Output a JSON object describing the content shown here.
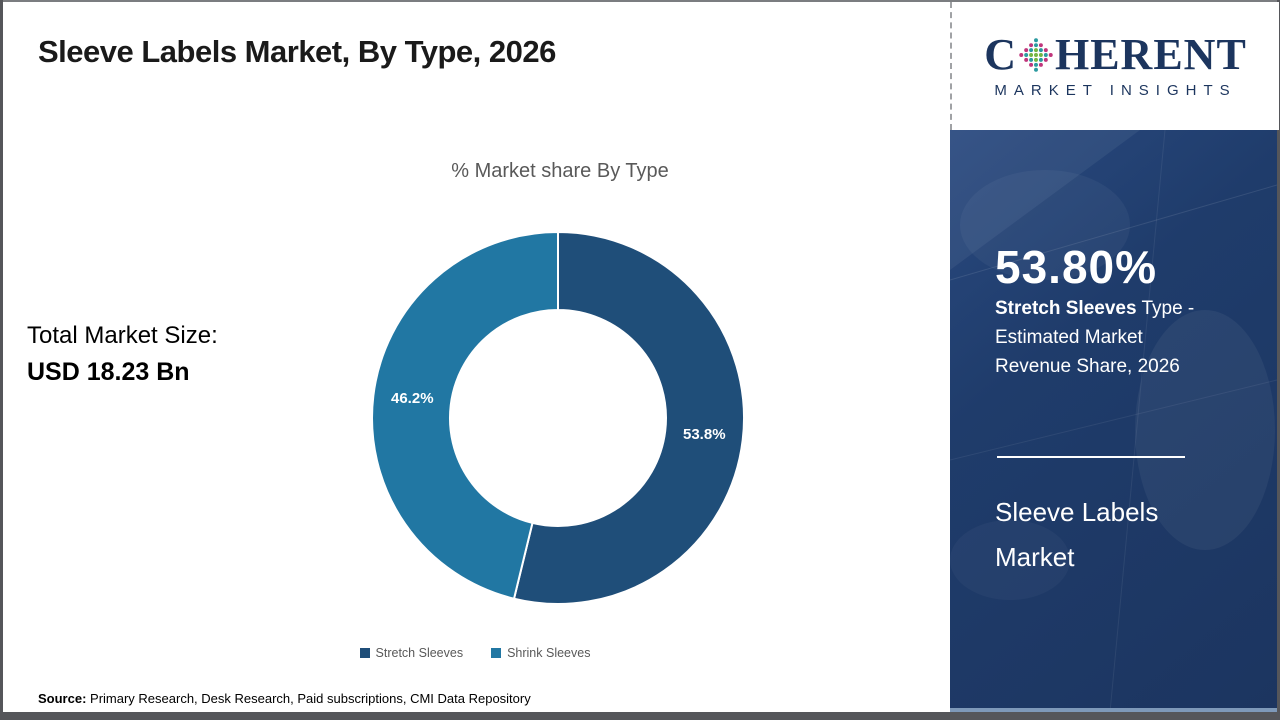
{
  "page": {
    "title": "Sleeve Labels Market, By Type, 2026",
    "source": {
      "label": "Source:",
      "text": " Primary Research, Desk Research, Paid subscriptions, CMI Data Repository"
    },
    "colors": {
      "border_grey": "#55565a",
      "background": "#ffffff"
    }
  },
  "left_panel": {
    "total_label": "Total Market Size:",
    "total_value": "USD 18.23 Bn"
  },
  "logo": {
    "brand_prefix": "C",
    "brand_suffix": "HERENT",
    "tagline": "MARKET INSIGHTS",
    "icon": "globe-dots-icon",
    "colors": {
      "navy": "#1c355e",
      "teal": "#2b9aa0",
      "green": "#74b643",
      "magenta": "#c0367c"
    }
  },
  "sidebar": {
    "background": "#1e3a66",
    "headline_value": "53.80%",
    "description_bold": "Stretch Sleeves",
    "description_rest": " Type - Estimated Market Revenue Share, 2026",
    "footer_line1": "Sleeve Labels",
    "footer_line2": "Market"
  },
  "chart_data": {
    "type": "pie",
    "donut": true,
    "title": "% Market share By Type",
    "categories": [
      "Stretch Sleeves",
      "Shrink Sleeves"
    ],
    "values": [
      53.8,
      46.2
    ],
    "slice_labels": [
      "53.8%",
      "46.2%"
    ],
    "colors": [
      "#1f4e79",
      "#2177a3"
    ],
    "start_angle_deg": 0,
    "direction": "clockwise",
    "legend_position": "bottom",
    "grid": false
  }
}
